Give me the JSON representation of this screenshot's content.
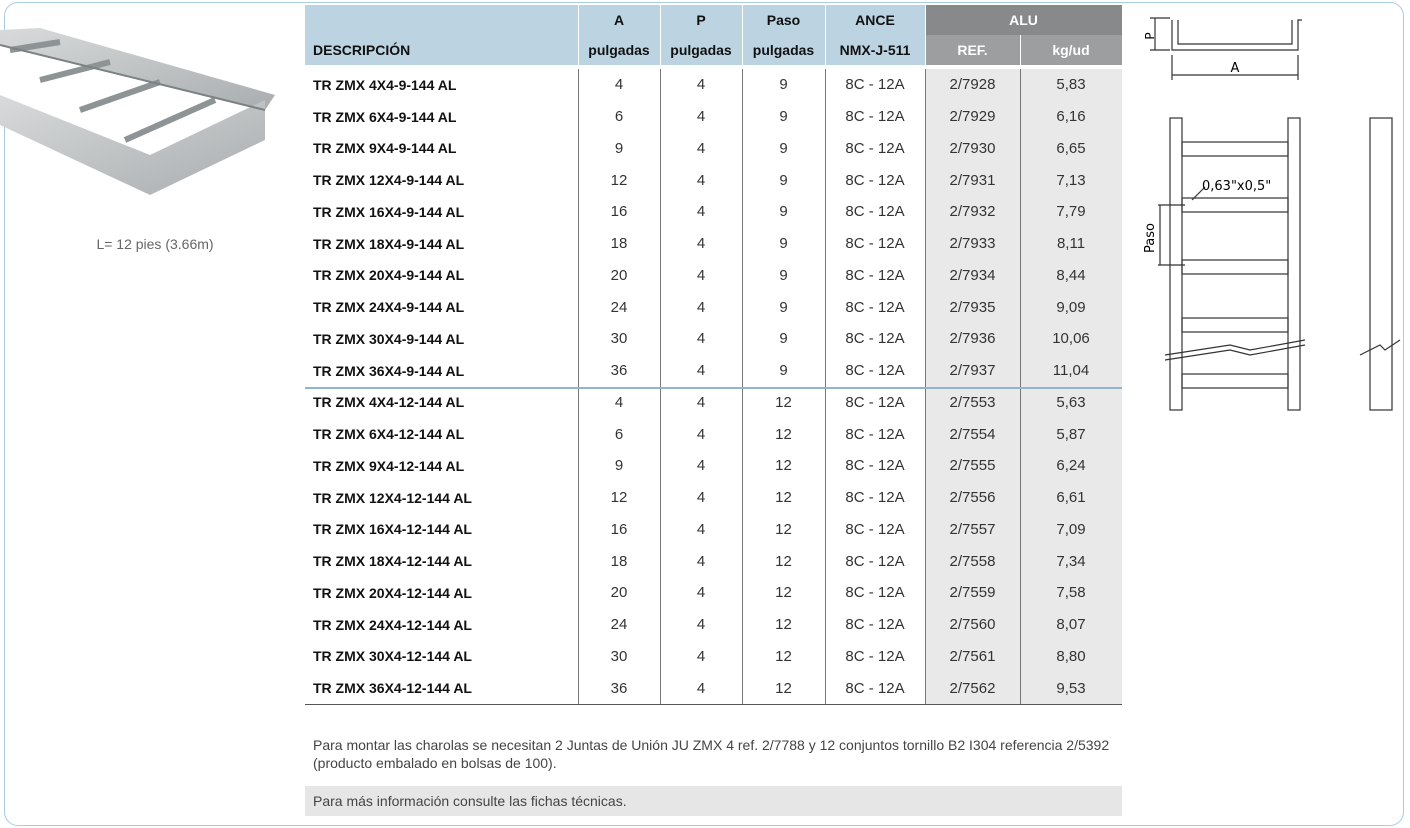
{
  "product": {
    "caption": "L= 12 pies (3.66m)"
  },
  "table": {
    "header_top": [
      "A",
      "P",
      "Paso",
      "ANCE",
      "ALU"
    ],
    "header_bottom": [
      "DESCRIPCIÓN",
      "pulgadas",
      "pulgadas",
      "pulgadas",
      "NMX-J-511",
      "REF.",
      "kg/ud"
    ],
    "rows": [
      [
        "TR ZMX 4X4-9-144 AL",
        4,
        4,
        9,
        "8C - 12A",
        "2/7928",
        "5,83"
      ],
      [
        "TR ZMX 6X4-9-144 AL",
        6,
        4,
        9,
        "8C - 12A",
        "2/7929",
        "6,16"
      ],
      [
        "TR ZMX 9X4-9-144 AL",
        9,
        4,
        9,
        "8C - 12A",
        "2/7930",
        "6,65"
      ],
      [
        "TR ZMX 12X4-9-144 AL",
        12,
        4,
        9,
        "8C - 12A",
        "2/7931",
        "7,13"
      ],
      [
        "TR ZMX 16X4-9-144 AL",
        16,
        4,
        9,
        "8C - 12A",
        "2/7932",
        "7,79"
      ],
      [
        "TR ZMX 18X4-9-144 AL",
        18,
        4,
        9,
        "8C - 12A",
        "2/7933",
        "8,11"
      ],
      [
        "TR ZMX 20X4-9-144 AL",
        20,
        4,
        9,
        "8C - 12A",
        "2/7934",
        "8,44"
      ],
      [
        "TR ZMX 24X4-9-144 AL",
        24,
        4,
        9,
        "8C - 12A",
        "2/7935",
        "9,09"
      ],
      [
        "TR ZMX 30X4-9-144 AL",
        30,
        4,
        9,
        "8C - 12A",
        "2/7936",
        "10,06"
      ],
      [
        "TR ZMX 36X4-9-144 AL",
        36,
        4,
        9,
        "8C - 12A",
        "2/7937",
        "11,04"
      ],
      [
        "TR ZMX 4X4-12-144 AL",
        4,
        4,
        12,
        "8C - 12A",
        "2/7553",
        "5,63"
      ],
      [
        "TR ZMX 6X4-12-144 AL",
        6,
        4,
        12,
        "8C - 12A",
        "2/7554",
        "5,87"
      ],
      [
        "TR ZMX 9X4-12-144 AL",
        9,
        4,
        12,
        "8C - 12A",
        "2/7555",
        "6,24"
      ],
      [
        "TR ZMX 12X4-12-144 AL",
        12,
        4,
        12,
        "8C - 12A",
        "2/7556",
        "6,61"
      ],
      [
        "TR ZMX 16X4-12-144 AL",
        16,
        4,
        12,
        "8C - 12A",
        "2/7557",
        "7,09"
      ],
      [
        "TR ZMX 18X4-12-144 AL",
        18,
        4,
        12,
        "8C - 12A",
        "2/7558",
        "7,34"
      ],
      [
        "TR ZMX 20X4-12-144 AL",
        20,
        4,
        12,
        "8C - 12A",
        "2/7559",
        "7,58"
      ],
      [
        "TR ZMX 24X4-12-144 AL",
        24,
        4,
        12,
        "8C - 12A",
        "2/7560",
        "8,07"
      ],
      [
        "TR ZMX 30X4-12-144 AL",
        30,
        4,
        12,
        "8C - 12A",
        "2/7561",
        "8,80"
      ],
      [
        "TR ZMX 36X4-12-144 AL",
        36,
        4,
        12,
        "8C - 12A",
        "2/7562",
        "9,53"
      ]
    ]
  },
  "notes": [
    "Para montar las charolas se necesitan 2 Juntas de Unión JU ZMX 4 ref. 2/7788 y 12 conjuntos tornillo B2 I304 referencia 2/5392 (producto embalado en bolsas de 100).",
    "Para más información consulte las fichas técnicas."
  ],
  "diagram": {
    "labels": [
      "P",
      "A",
      "0,63\"x0,5\"",
      "Paso"
    ]
  }
}
